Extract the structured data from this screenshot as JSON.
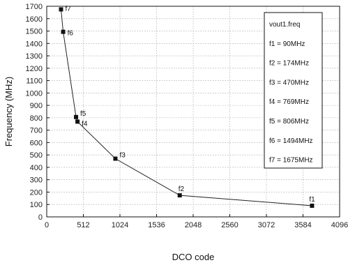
{
  "chart_data": {
    "type": "scatter",
    "xlabel": "DCO code",
    "ylabel": "Frequency (MHz)",
    "xlim": [
      0,
      4096
    ],
    "ylim": [
      0,
      1700
    ],
    "x_ticks": [
      0,
      512,
      1024,
      1536,
      2048,
      2560,
      3072,
      3584,
      4096
    ],
    "y_ticks": [
      0,
      100,
      200,
      300,
      400,
      500,
      600,
      700,
      800,
      900,
      1000,
      1100,
      1200,
      1300,
      1400,
      1500,
      1600,
      1700
    ],
    "grid": true,
    "connected_line": true,
    "points": [
      {
        "label": "f7",
        "x": 200,
        "y": 1675
      },
      {
        "label": "f6",
        "x": 230,
        "y": 1494
      },
      {
        "label": "f5",
        "x": 410,
        "y": 806
      },
      {
        "label": "f4",
        "x": 430,
        "y": 769
      },
      {
        "label": "f3",
        "x": 960,
        "y": 470
      },
      {
        "label": "f2",
        "x": 1860,
        "y": 174
      },
      {
        "label": "f1",
        "x": 3710,
        "y": 90
      }
    ],
    "legend": {
      "placement": "top-right",
      "title": "vout1.freq",
      "entries": [
        "f1 = 90MHz",
        "f2 = 174MHz",
        "f3 = 470MHz",
        "f4 = 769MHz",
        "f5 = 806MHz",
        "f6 = 1494MHz",
        "f7 = 1675MHz"
      ]
    }
  }
}
